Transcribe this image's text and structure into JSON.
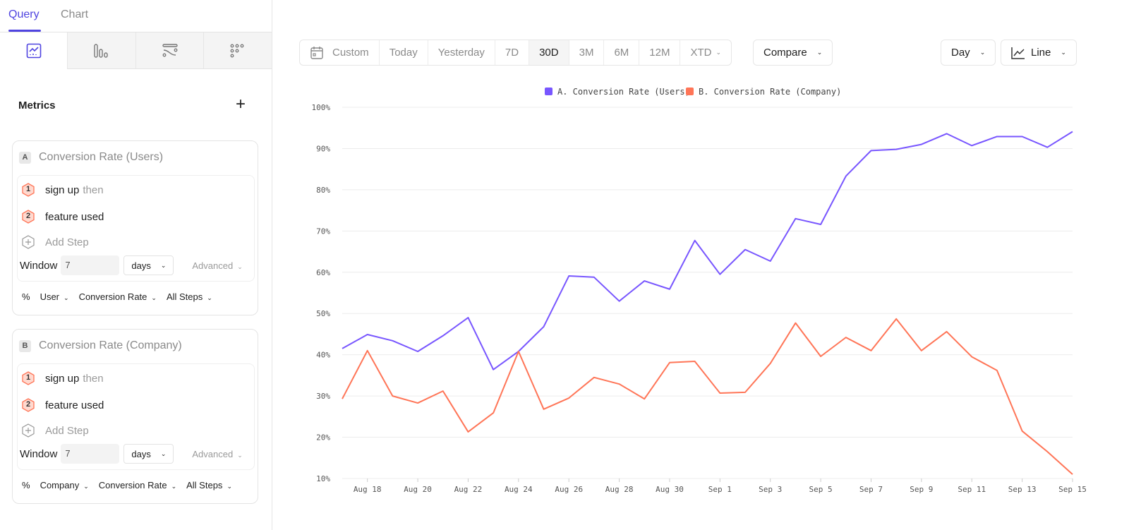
{
  "tabs": [
    {
      "label": "Query"
    },
    {
      "label": "Chart"
    }
  ],
  "viz_tabs": [
    {
      "icon": "line-chart-icon"
    },
    {
      "icon": "bar-chart-icon"
    },
    {
      "icon": "flows-icon"
    },
    {
      "icon": "grid-dots-icon"
    }
  ],
  "metrics": {
    "title": "Metrics",
    "add_icon": "plus-icon"
  },
  "cards": [
    {
      "letter": "A",
      "title": "Conversion Rate (Users)",
      "steps": [
        {
          "n": "1",
          "label": "sign up",
          "suffix": "then"
        },
        {
          "n": "2",
          "label": "feature used",
          "suffix": ""
        }
      ],
      "add_step": "Add Step",
      "window_label": "Window",
      "window_value": "7",
      "window_unit": "days",
      "advanced": "Advanced",
      "footer": [
        "%",
        "User",
        "Conversion Rate",
        "All Steps"
      ]
    },
    {
      "letter": "B",
      "title": "Conversion Rate (Company)",
      "steps": [
        {
          "n": "1",
          "label": "sign up",
          "suffix": "then"
        },
        {
          "n": "2",
          "label": "feature used",
          "suffix": ""
        }
      ],
      "add_step": "Add Step",
      "window_label": "Window",
      "window_value": "7",
      "window_unit": "days",
      "advanced": "Advanced",
      "footer": [
        "%",
        "Company",
        "Conversion Rate",
        "All Steps"
      ]
    }
  ],
  "toolbar": {
    "ranges": [
      "Custom",
      "Today",
      "Yesterday",
      "7D",
      "30D",
      "3M",
      "6M",
      "12M",
      "XTD"
    ],
    "selected": "30D",
    "compare": "Compare",
    "interval": "Day",
    "chart_type": "Line"
  },
  "colors": {
    "accent": "#4f44e0",
    "series_a": "#7856ff",
    "series_b": "#ff7557"
  },
  "chart_data": {
    "type": "line",
    "legend_position": "top-center",
    "grid": true,
    "ylim": [
      10,
      100
    ],
    "y_ticks": [
      "10%",
      "20%",
      "30%",
      "40%",
      "50%",
      "60%",
      "70%",
      "80%",
      "90%",
      "100%"
    ],
    "x": [
      "Aug 17",
      "Aug 18",
      "Aug 19",
      "Aug 20",
      "Aug 21",
      "Aug 22",
      "Aug 23",
      "Aug 24",
      "Aug 25",
      "Aug 26",
      "Aug 27",
      "Aug 28",
      "Aug 29",
      "Aug 30",
      "Aug 31",
      "Sep 1",
      "Sep 2",
      "Sep 3",
      "Sep 4",
      "Sep 5",
      "Sep 6",
      "Sep 7",
      "Sep 8",
      "Sep 9",
      "Sep 10",
      "Sep 11",
      "Sep 12",
      "Sep 13",
      "Sep 14",
      "Sep 15"
    ],
    "x_tick_labels": [
      "Aug 18",
      "Aug 20",
      "Aug 22",
      "Aug 24",
      "Aug 26",
      "Aug 28",
      "Aug 30",
      "Sep 1",
      "Sep 3",
      "Sep 5",
      "Sep 7",
      "Sep 9",
      "Sep 11",
      "Sep 13",
      "Sep 15"
    ],
    "series": [
      {
        "name": "A. Conversion Rate (Users)",
        "color": "#7856ff",
        "values": [
          41.5,
          44.9,
          43.4,
          40.8,
          44.6,
          49.0,
          36.4,
          40.8,
          46.8,
          59.1,
          58.8,
          53.0,
          57.9,
          55.9,
          67.7,
          59.5,
          65.5,
          62.7,
          73.0,
          71.6,
          83.3,
          89.5,
          89.8,
          91.0,
          93.6,
          90.7,
          92.9,
          92.9,
          90.3,
          94.1
        ]
      },
      {
        "name": "B. Conversion Rate (Company)",
        "color": "#ff7557",
        "values": [
          29.3,
          41.0,
          30.0,
          28.3,
          31.2,
          21.3,
          25.9,
          40.8,
          26.8,
          29.5,
          34.5,
          32.9,
          29.3,
          38.1,
          38.4,
          30.7,
          30.9,
          37.9,
          47.7,
          39.6,
          44.2,
          41.0,
          48.7,
          41.0,
          45.6,
          39.5,
          36.2,
          21.5,
          16.5,
          11.0
        ]
      }
    ]
  }
}
